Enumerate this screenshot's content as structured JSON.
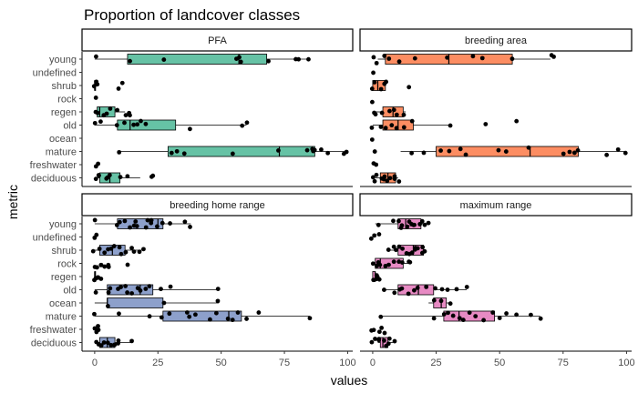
{
  "chart_data": {
    "type": "boxplot",
    "title": "Proportion of landcover classes",
    "xlabel": "values",
    "ylabel": "metric",
    "xlim": [
      -5,
      102
    ],
    "xticks": [
      0,
      25,
      50,
      75,
      100
    ],
    "categories": [
      "young",
      "undefined",
      "shrub",
      "rock",
      "regen",
      "old",
      "ocean",
      "mature",
      "freshwater",
      "deciduous"
    ],
    "panels": [
      {
        "name": "PFA",
        "color": "#66c2a5",
        "boxes": {
          "young": [
            0,
            13,
            57,
            68,
            85
          ],
          "shrub": [
            0,
            0,
            0,
            0,
            0
          ],
          "regen": [
            0,
            1,
            2,
            8,
            12
          ],
          "old": [
            0,
            9,
            14,
            32,
            60
          ],
          "mature": [
            10,
            29,
            73,
            87,
            100
          ],
          "deciduous": [
            1,
            2,
            6,
            10,
            18
          ]
        },
        "points": {
          "young": [
            1,
            14,
            27,
            56,
            57,
            58,
            68,
            79,
            80,
            85
          ],
          "shrub": [
            0,
            0,
            1,
            10,
            11
          ],
          "rock": [
            1
          ],
          "regen": [
            1,
            1,
            3,
            5,
            6,
            9,
            12,
            13,
            14
          ],
          "old": [
            0,
            2,
            9,
            12,
            15,
            17,
            18,
            20,
            37,
            58,
            60
          ],
          "mature": [
            10,
            30,
            33,
            36,
            55,
            73,
            84,
            86,
            86,
            87,
            90,
            92,
            98,
            100
          ],
          "freshwater": [
            0,
            1
          ],
          "deciduous": [
            0,
            1,
            2,
            4,
            5,
            6,
            10,
            13,
            22,
            23
          ]
        }
      },
      {
        "name": "breeding area",
        "color": "#fc8d62",
        "boxes": {
          "young": [
            2,
            5,
            30,
            55,
            70
          ],
          "shrub": [
            0,
            0,
            2,
            5,
            5
          ],
          "regen": [
            0,
            4,
            8,
            12,
            13
          ],
          "old": [
            0,
            4,
            10,
            16,
            30
          ],
          "mature": [
            11,
            25,
            62,
            81,
            100
          ],
          "deciduous": [
            1,
            3,
            6,
            9,
            10
          ]
        },
        "points": {
          "young": [
            1,
            2,
            5,
            7,
            10,
            17,
            30,
            40,
            43,
            55,
            70,
            72
          ],
          "undefined": [
            0
          ],
          "shrub": [
            0,
            1,
            3,
            4,
            5,
            14
          ],
          "rock": [
            0
          ],
          "regen": [
            0,
            1,
            3,
            6,
            8,
            9,
            12
          ],
          "old": [
            0,
            3,
            5,
            8,
            10,
            12,
            15,
            30,
            44,
            57
          ],
          "ocean": [
            0
          ],
          "mature": [
            1,
            15,
            20,
            27,
            30,
            34,
            36,
            50,
            52,
            61,
            75,
            77,
            80,
            81,
            92,
            97,
            100
          ],
          "freshwater": [
            0,
            1
          ],
          "deciduous": [
            0,
            1,
            2,
            3,
            4,
            5,
            6,
            7,
            8,
            9,
            10
          ]
        }
      },
      {
        "name": "breeding home range",
        "color": "#8da0cb",
        "boxes": {
          "young": [
            0,
            9,
            25,
            27,
            38
          ],
          "shrub": [
            0,
            2,
            7,
            12,
            20
          ],
          "regen": [
            0,
            0,
            0,
            0,
            1
          ],
          "old": [
            0,
            5,
            18,
            23,
            49
          ],
          "ocean": [
            0,
            5,
            5,
            27,
            49
          ],
          "mature": [
            0,
            27,
            53,
            58,
            85
          ],
          "deciduous": [
            0,
            2,
            5,
            8,
            15
          ]
        },
        "points": {
          "young": [
            0,
            9,
            10,
            12,
            14,
            15,
            16,
            17,
            20,
            21,
            22,
            23,
            25,
            27,
            30,
            36,
            38
          ],
          "undefined": [
            0,
            1
          ],
          "shrub": [
            0,
            2,
            4,
            5,
            6,
            8,
            10,
            11,
            12,
            15,
            16,
            17,
            20
          ],
          "rock": [
            0,
            1,
            2,
            3,
            4,
            5,
            6,
            13
          ],
          "regen": [
            0,
            0,
            1,
            1,
            2
          ],
          "old": [
            0,
            5,
            6,
            9,
            10,
            12,
            13,
            15,
            17,
            18,
            20,
            22,
            26,
            30,
            49
          ],
          "ocean": [
            5,
            27,
            49
          ],
          "mature": [
            0,
            10,
            22,
            26,
            30,
            36,
            38,
            40,
            45,
            48,
            52,
            55,
            57,
            60,
            65,
            85
          ],
          "freshwater": [
            0,
            1,
            1,
            1
          ],
          "deciduous": [
            0,
            1,
            2,
            3,
            4,
            5,
            6,
            7,
            8,
            9,
            10,
            15
          ]
        }
      },
      {
        "name": "maximum range",
        "color": "#e78ac3",
        "boxes": {
          "young": [
            1,
            10,
            13,
            19,
            22
          ],
          "shrub": [
            7,
            10,
            16,
            20,
            21
          ],
          "rock": [
            0,
            1,
            3,
            12,
            14
          ],
          "regen": [
            0,
            0,
            1,
            1,
            2
          ],
          "old": [
            4,
            10,
            18,
            24,
            37
          ],
          "ocean": [
            22,
            24,
            27,
            29,
            30
          ],
          "mature": [
            3,
            28,
            34,
            48,
            66
          ],
          "deciduous": [
            2,
            3,
            4,
            6,
            8
          ]
        },
        "points": {
          "young": [
            2,
            8,
            10,
            11,
            12,
            13,
            14,
            15,
            16,
            17,
            18,
            19,
            20,
            22
          ],
          "undefined": [
            0,
            1,
            2
          ],
          "shrub": [
            6,
            8,
            9,
            10,
            12,
            13,
            14,
            15,
            16,
            17,
            18,
            19,
            20,
            21
          ],
          "rock": [
            0,
            1,
            2,
            3,
            5,
            6,
            8,
            10,
            12,
            14,
            15
          ],
          "regen": [
            0,
            1,
            1,
            2,
            3
          ],
          "old": [
            5,
            8,
            10,
            12,
            14,
            17,
            18,
            21,
            24,
            28,
            30,
            33,
            37
          ],
          "ocean": [
            24,
            27,
            30
          ],
          "mature": [
            3,
            24,
            28,
            30,
            32,
            34,
            36,
            38,
            40,
            43,
            48,
            50,
            52,
            56,
            62,
            66
          ],
          "freshwater": [
            0,
            1,
            2,
            3,
            4
          ],
          "deciduous": [
            0,
            1,
            2,
            3,
            4,
            5,
            6,
            7,
            8
          ]
        }
      }
    ]
  }
}
